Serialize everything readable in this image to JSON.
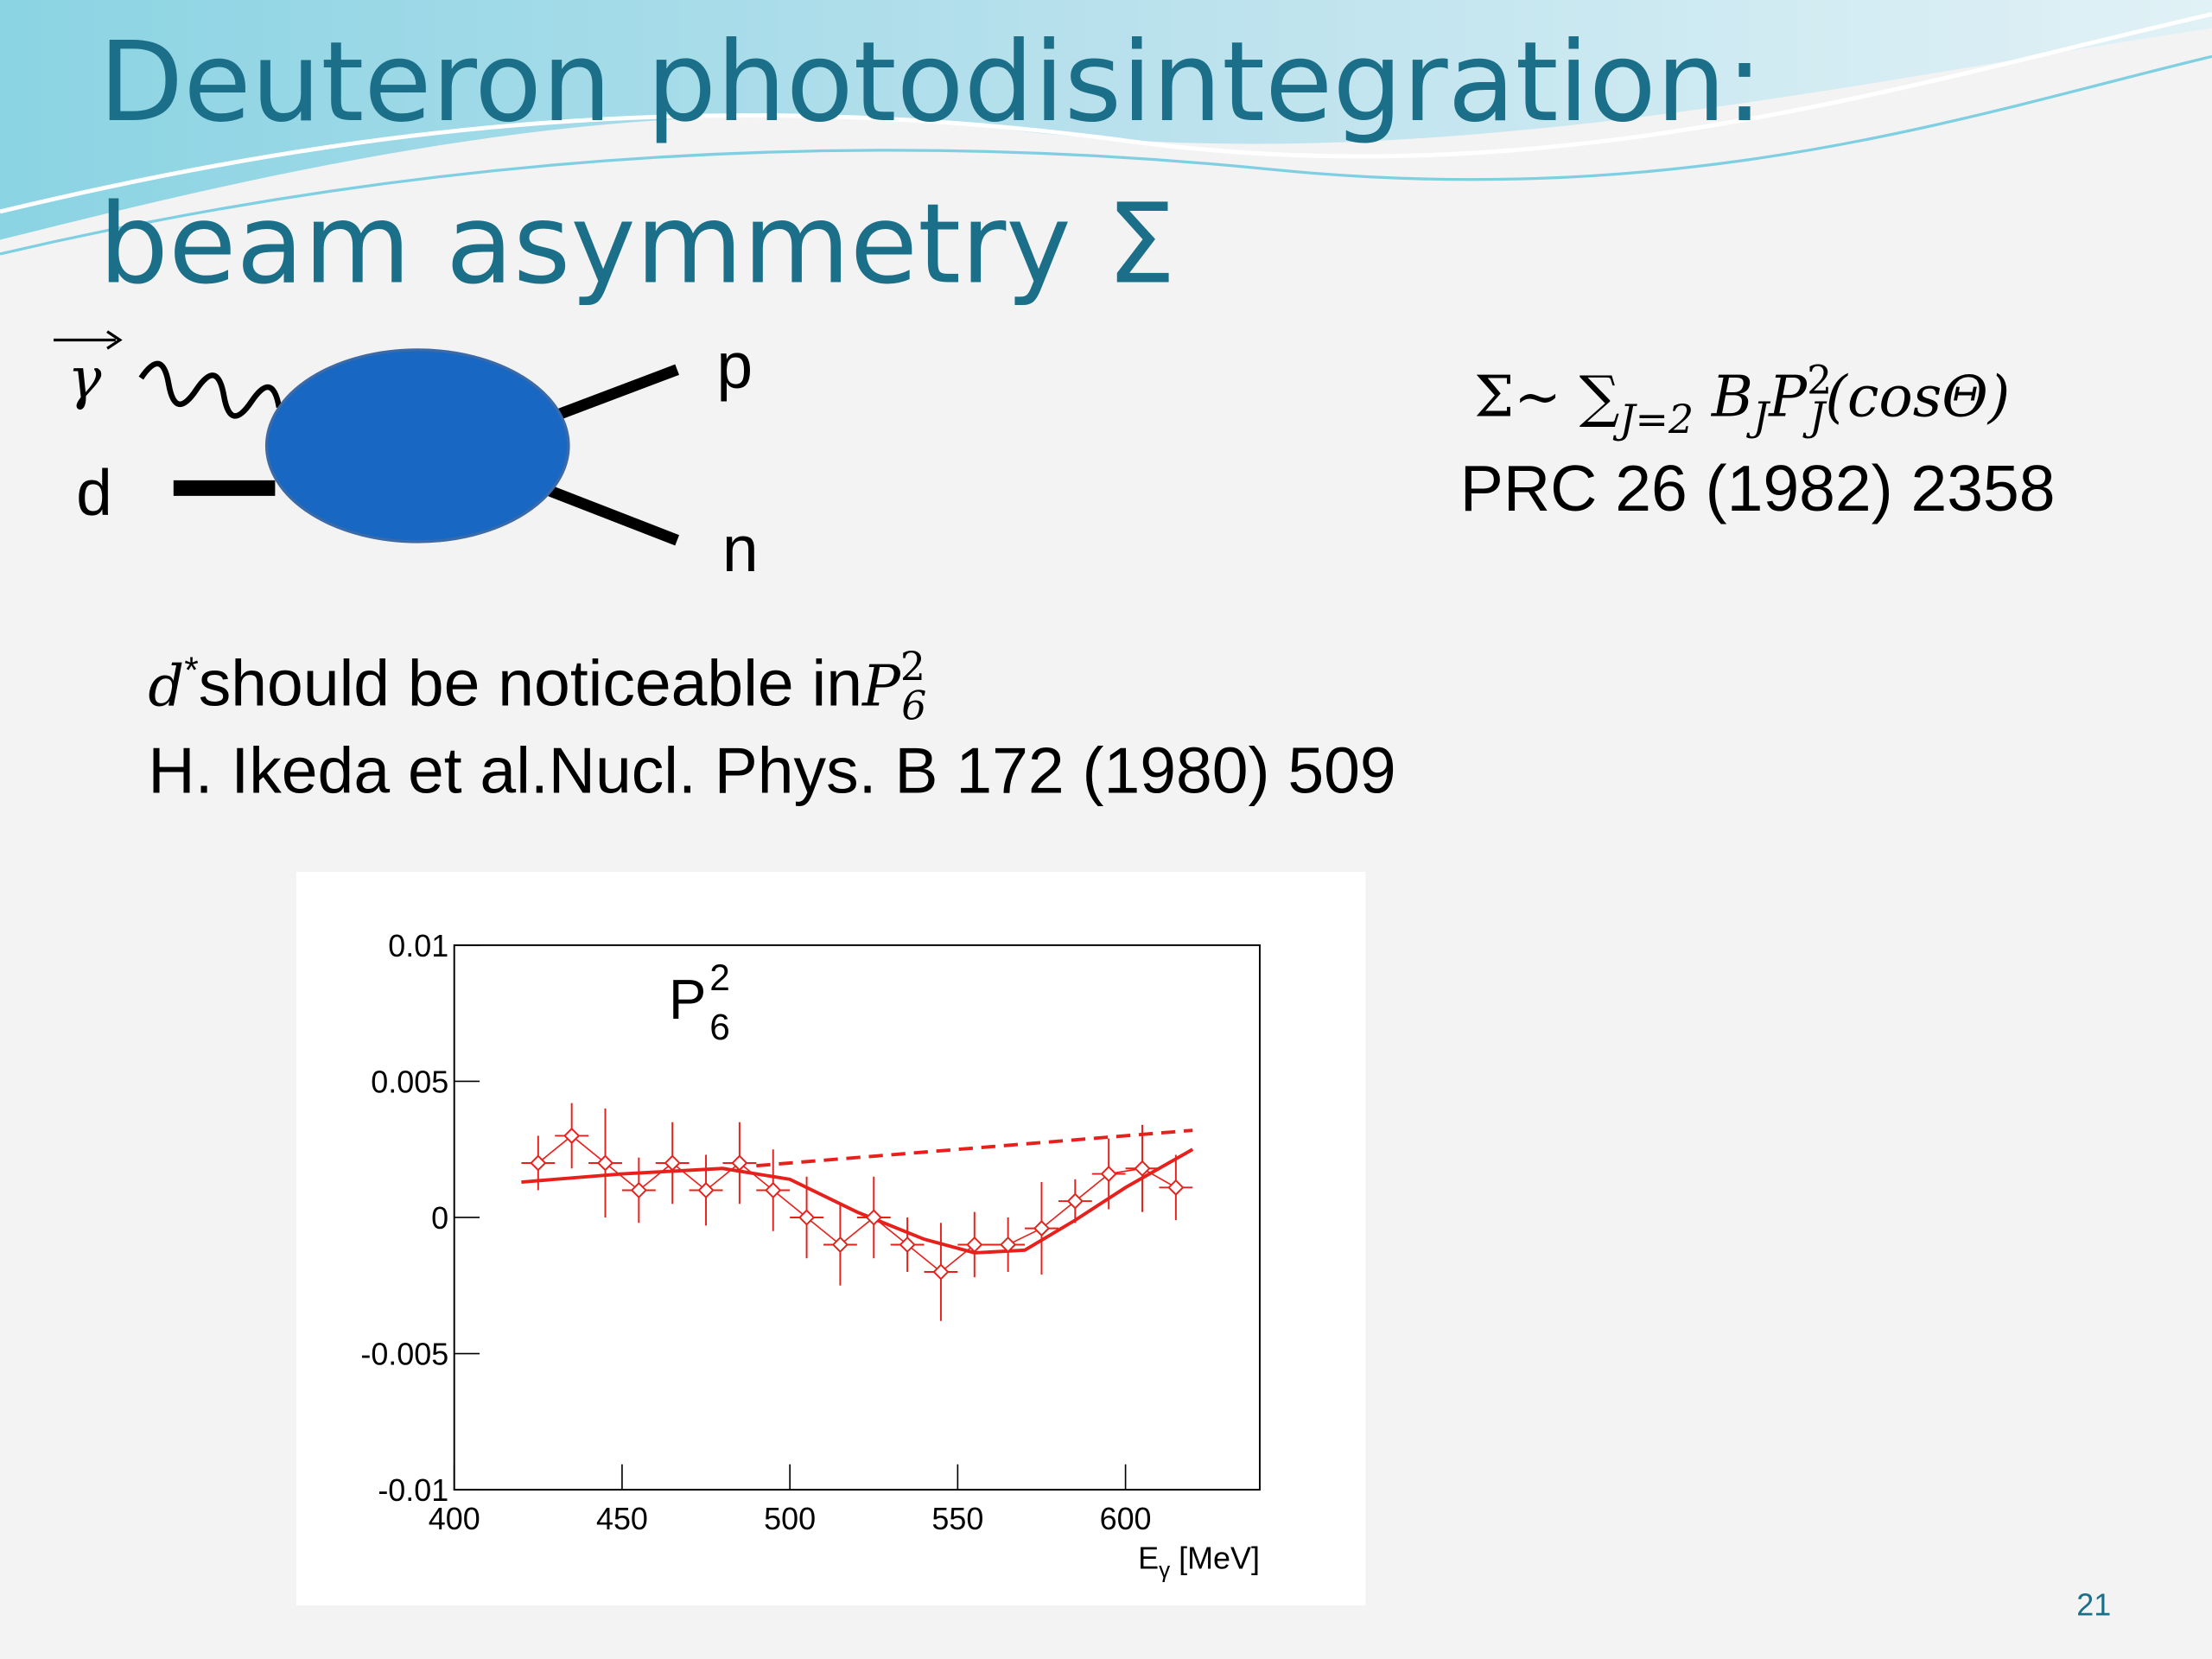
{
  "title": {
    "line1": "Deuteron photodisintegration:",
    "line2": "beam asymmetry Σ"
  },
  "diagram": {
    "gamma": "γ",
    "d": "d",
    "p": "p",
    "n": "n"
  },
  "formula": {
    "lead": "Σ~ ∑",
    "sum_sub": "J=2",
    "b": " B",
    "b_sub": "J",
    "p": "P",
    "p_sup": "2",
    "p_sub": "J",
    "tail": "(cosΘ)"
  },
  "reference": "PRC 26 (1982) 2358",
  "note": {
    "d": "d",
    "d_sup": "*",
    "text": "should be noticeable in",
    "p": "P",
    "p_sup": "2",
    "p_sub": "6"
  },
  "citation": "H. Ikeda et al.Nucl. Phys. B 172 (1980) 509",
  "page_number": "21",
  "chart_data": {
    "type": "errorbar",
    "label": {
      "main": "P",
      "sup": "2",
      "sub": "6"
    },
    "x_label": {
      "main": "E",
      "sub": "γ",
      "unit": " [MeV]"
    },
    "xlim": [
      400,
      640
    ],
    "ylim": [
      -0.01,
      0.01
    ],
    "xticks": [
      400,
      450,
      500,
      550,
      600
    ],
    "yticks": [
      0.01,
      0.005,
      0,
      -0.005,
      -0.01
    ],
    "series": [
      {
        "color": "#e8201c",
        "x": [
          425,
          435,
          445,
          455,
          465,
          475,
          485,
          495,
          505,
          515,
          525,
          535,
          545,
          555,
          565,
          575,
          585,
          595,
          605,
          615
        ],
        "values": [
          0.002,
          0.003,
          0.002,
          0.001,
          0.002,
          0.001,
          0.002,
          0.001,
          0,
          -0.001,
          0,
          -0.001,
          -0.002,
          -0.001,
          -0.001,
          -0.0004,
          0.0006,
          0.0016,
          0.0018,
          0.0011
        ],
        "y_errors": [
          0.001,
          0.0012,
          0.002,
          0.0012,
          0.0015,
          0.0013,
          0.0015,
          0.0015,
          0.0015,
          0.0015,
          0.0015,
          0.001,
          0.0018,
          0.0012,
          0.001,
          0.0017,
          0.0008,
          0.0013,
          0.0016,
          0.0012
        ],
        "x_errors": [
          5,
          5,
          5,
          5,
          5,
          5,
          5,
          5,
          5,
          5,
          5,
          5,
          5,
          5,
          5,
          5,
          5,
          5,
          5,
          5
        ]
      }
    ],
    "curves": [
      {
        "color": "#e8201c",
        "dashed": false,
        "x": [
          420,
          450,
          480,
          500,
          520,
          540,
          555,
          570,
          585,
          600,
          620
        ],
        "values": [
          0.0013,
          0.0016,
          0.0018,
          0.0014,
          0.0002,
          -0.0008,
          -0.0013,
          -0.0012,
          -0.0001,
          0.0011,
          0.0025
        ]
      },
      {
        "color": "#e8201c",
        "dashed": true,
        "x": [
          490,
          620
        ],
        "values": [
          0.0019,
          0.0032
        ]
      }
    ]
  }
}
